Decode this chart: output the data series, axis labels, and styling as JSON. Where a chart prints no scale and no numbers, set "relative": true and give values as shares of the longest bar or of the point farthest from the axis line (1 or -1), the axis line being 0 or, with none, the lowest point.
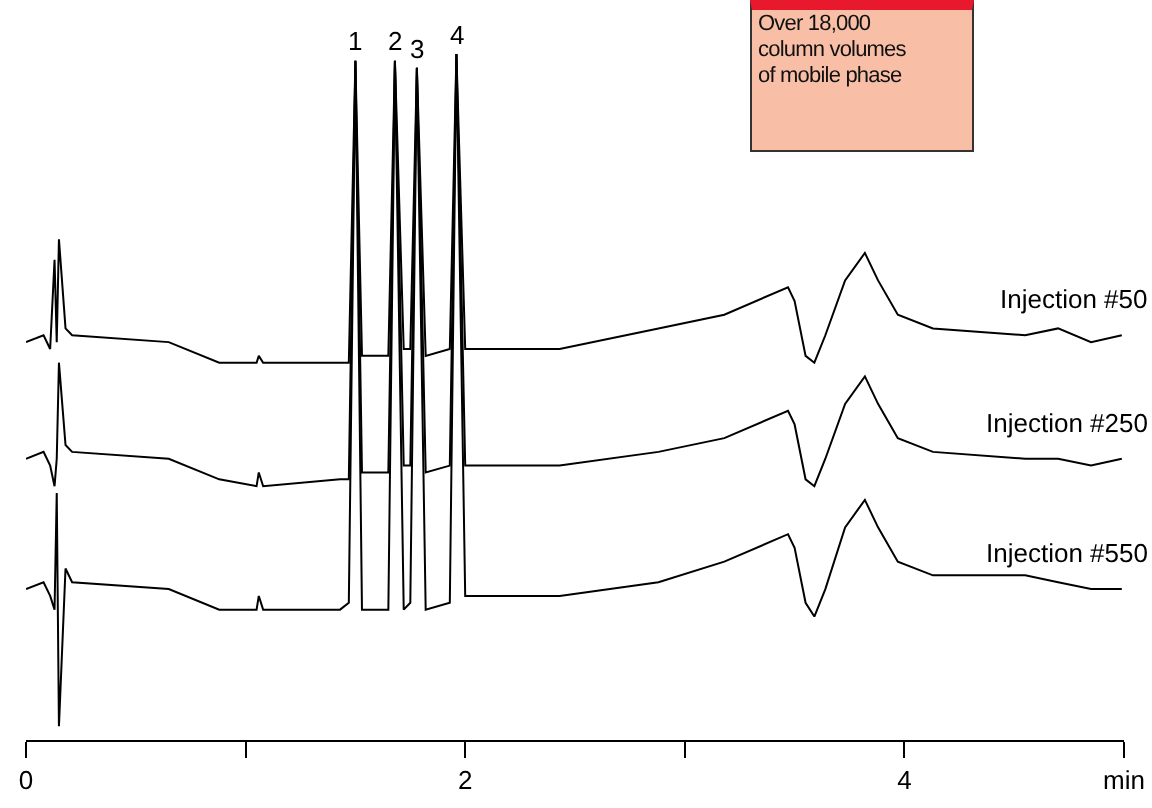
{
  "chart_data": {
    "type": "line",
    "relative": true,
    "xlim": [
      0,
      5
    ],
    "xticks": [
      0,
      {
        "value": 1,
        "label": null
      },
      2,
      {
        "value": 3,
        "label": null
      },
      4,
      {
        "value": 5,
        "label": "min"
      }
    ],
    "legend": false,
    "grid": false,
    "tick_labels": "x",
    "x": [
      0,
      0.08,
      0.11,
      0.13,
      0.14,
      0.15,
      0.18,
      0.21,
      0.65,
      0.88,
      1.05,
      1.06,
      1.08,
      1.43,
      1.47,
      1.5,
      1.53,
      1.65,
      1.68,
      1.72,
      1.75,
      1.78,
      1.82,
      1.93,
      1.96,
      2.0,
      2.25,
      2.43,
      2.88,
      3.18,
      3.47,
      3.5,
      3.55,
      3.59,
      3.64,
      3.73,
      3.82,
      3.88,
      3.97,
      4.13,
      4.55,
      4.7,
      4.85,
      4.99
    ],
    "series": [
      {
        "name": "Injection #50",
        "color": "#000000",
        "values": [
          0.58,
          0.59,
          0.57,
          0.7,
          0.58,
          0.73,
          0.6,
          0.59,
          0.58,
          0.55,
          0.55,
          0.56,
          0.55,
          0.55,
          0.55,
          0.99,
          0.56,
          0.56,
          0.99,
          0.57,
          0.57,
          0.98,
          0.56,
          0.57,
          1.0,
          0.57,
          0.57,
          0.57,
          0.6,
          0.62,
          0.66,
          0.64,
          0.56,
          0.55,
          0.59,
          0.67,
          0.71,
          0.67,
          0.62,
          0.6,
          0.59,
          0.6,
          0.58,
          0.59
        ]
      },
      {
        "name": "Injection #250",
        "color": "#000000",
        "values": [
          0.41,
          0.42,
          0.4,
          0.37,
          0.41,
          0.55,
          0.43,
          0.42,
          0.41,
          0.38,
          0.37,
          0.39,
          0.37,
          0.38,
          0.38,
          0.99,
          0.39,
          0.39,
          0.99,
          0.4,
          0.4,
          0.98,
          0.39,
          0.4,
          1.0,
          0.4,
          0.4,
          0.4,
          0.42,
          0.44,
          0.48,
          0.46,
          0.38,
          0.37,
          0.41,
          0.49,
          0.53,
          0.49,
          0.44,
          0.42,
          0.41,
          0.41,
          0.4,
          0.41
        ]
      },
      {
        "name": "Injection #550",
        "color": "#000000",
        "values": [
          0.22,
          0.23,
          0.21,
          0.19,
          0.36,
          0.02,
          0.25,
          0.23,
          0.22,
          0.19,
          0.19,
          0.21,
          0.19,
          0.19,
          0.2,
          0.99,
          0.19,
          0.19,
          0.99,
          0.19,
          0.2,
          0.98,
          0.19,
          0.2,
          1.0,
          0.21,
          0.21,
          0.21,
          0.23,
          0.26,
          0.3,
          0.28,
          0.2,
          0.18,
          0.22,
          0.31,
          0.35,
          0.31,
          0.26,
          0.24,
          0.24,
          0.23,
          0.22,
          0.22
        ]
      }
    ],
    "annotations": [
      {
        "text": "1",
        "x": 1.5,
        "y": 0.99
      },
      {
        "text": "2",
        "x": 1.68,
        "y": 0.99
      },
      {
        "text": "3",
        "x": 1.78,
        "y": 0.98
      },
      {
        "text": "4",
        "x": 1.96,
        "y": 1.0
      },
      "Over 18,000 column volumes of mobile phase"
    ]
  }
}
